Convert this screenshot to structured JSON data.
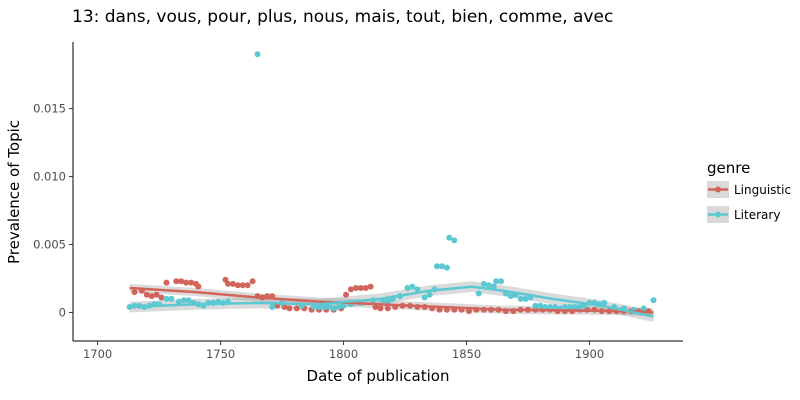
{
  "chart_data": {
    "type": "scatter",
    "title": "13: dans, vous, pour, plus, nous, mais, tout, bien, comme, avec",
    "xlabel": "Date of publication",
    "ylabel": "Prevalence of Topic",
    "xlim": [
      1690,
      1938
    ],
    "ylim": [
      -0.0021,
      0.0199
    ],
    "x_ticks": [
      1700,
      1750,
      1800,
      1850,
      1900
    ],
    "x_tick_labels": [
      "1700",
      "1750",
      "1800",
      "1850",
      "1900"
    ],
    "y_ticks": [
      0,
      0.005,
      0.01,
      0.015
    ],
    "y_tick_labels": [
      "0",
      "0.005",
      "0.010",
      "0.015"
    ],
    "grid": false,
    "legend": {
      "title": "genre",
      "position": "right"
    },
    "series": [
      {
        "name": "Linguistic",
        "color": "#d2655b",
        "points": [
          [
            1715,
            0.0015
          ],
          [
            1718,
            0.0016
          ],
          [
            1720,
            0.0013
          ],
          [
            1722,
            0.0012
          ],
          [
            1724,
            0.0013
          ],
          [
            1726,
            0.0011
          ],
          [
            1728,
            0.0022
          ],
          [
            1732,
            0.0023
          ],
          [
            1734,
            0.0023
          ],
          [
            1736,
            0.0022
          ],
          [
            1738,
            0.0022
          ],
          [
            1740,
            0.0021
          ],
          [
            1741,
            0.0019
          ],
          [
            1752,
            0.0024
          ],
          [
            1753,
            0.0021
          ],
          [
            1755,
            0.0021
          ],
          [
            1757,
            0.002
          ],
          [
            1759,
            0.002
          ],
          [
            1761,
            0.002
          ],
          [
            1763,
            0.0023
          ],
          [
            1765,
            0.0012
          ],
          [
            1767,
            0.0011
          ],
          [
            1769,
            0.0012
          ],
          [
            1771,
            0.0012
          ],
          [
            1773,
            0.0005
          ],
          [
            1776,
            0.0004
          ],
          [
            1778,
            0.0003
          ],
          [
            1781,
            0.0003
          ],
          [
            1784,
            0.0003
          ],
          [
            1787,
            0.0002
          ],
          [
            1790,
            0.0002
          ],
          [
            1793,
            0.0002
          ],
          [
            1796,
            0.0002
          ],
          [
            1799,
            0.0003
          ],
          [
            1801,
            0.0013
          ],
          [
            1803,
            0.0017
          ],
          [
            1805,
            0.0018
          ],
          [
            1807,
            0.0018
          ],
          [
            1809,
            0.0018
          ],
          [
            1811,
            0.0019
          ],
          [
            1813,
            0.0004
          ],
          [
            1815,
            0.0003
          ],
          [
            1818,
            0.0003
          ],
          [
            1821,
            0.0004
          ],
          [
            1824,
            0.0005
          ],
          [
            1827,
            0.0005
          ],
          [
            1830,
            0.0004
          ],
          [
            1833,
            0.0004
          ],
          [
            1836,
            0.0003
          ],
          [
            1839,
            0.0002
          ],
          [
            1842,
            0.0002
          ],
          [
            1845,
            0.0002
          ],
          [
            1848,
            0.0002
          ],
          [
            1851,
            0.0001
          ],
          [
            1854,
            0.0002
          ],
          [
            1857,
            0.0002
          ],
          [
            1860,
            0.0002
          ],
          [
            1863,
            0.0002
          ],
          [
            1866,
            0.0001
          ],
          [
            1869,
            0.0001
          ],
          [
            1872,
            0.0002
          ],
          [
            1875,
            0.0002
          ],
          [
            1878,
            0.0002
          ],
          [
            1881,
            0.0002
          ],
          [
            1884,
            0.0002
          ],
          [
            1887,
            0.0001
          ],
          [
            1890,
            0.0001
          ],
          [
            1893,
            0.0001
          ],
          [
            1896,
            0.0002
          ],
          [
            1899,
            0.0002
          ],
          [
            1902,
            0.0002
          ],
          [
            1905,
            0.0001
          ],
          [
            1908,
            0.0001
          ],
          [
            1911,
            0.0001
          ],
          [
            1914,
            0.0001
          ],
          [
            1917,
            0.0001
          ],
          [
            1920,
            0.0001
          ],
          [
            1924,
            0.0001
          ]
        ],
        "smooth": [
          [
            1713,
            0.0018
          ],
          [
            1740,
            0.0015
          ],
          [
            1765,
            0.0011
          ],
          [
            1790,
            0.0008
          ],
          [
            1815,
            0.0006
          ],
          [
            1840,
            0.0004
          ],
          [
            1865,
            0.0002
          ],
          [
            1890,
            0.00015
          ],
          [
            1915,
            0.0001
          ],
          [
            1926,
            0.0
          ]
        ],
        "band_halfwidth": 0.0003
      },
      {
        "name": "Literary",
        "color": "#5bc8d2",
        "points": [
          [
            1713,
            0.0004
          ],
          [
            1715,
            0.0005
          ],
          [
            1717,
            0.0005
          ],
          [
            1719,
            0.0004
          ],
          [
            1721,
            0.0005
          ],
          [
            1723,
            0.0006
          ],
          [
            1725,
            0.0006
          ],
          [
            1728,
            0.001
          ],
          [
            1730,
            0.001
          ],
          [
            1733,
            0.0008
          ],
          [
            1735,
            0.0009
          ],
          [
            1737,
            0.0009
          ],
          [
            1739,
            0.0007
          ],
          [
            1741,
            0.0006
          ],
          [
            1743,
            0.0005
          ],
          [
            1745,
            0.0007
          ],
          [
            1747,
            0.0007
          ],
          [
            1749,
            0.0008
          ],
          [
            1751,
            0.0007
          ],
          [
            1753,
            0.0008
          ],
          [
            1765,
            0.019
          ],
          [
            1771,
            0.0004
          ],
          [
            1775,
            0.0007
          ],
          [
            1783,
            0.0005
          ],
          [
            1788,
            0.0004
          ],
          [
            1790,
            0.0004
          ],
          [
            1792,
            0.0004
          ],
          [
            1794,
            0.0004
          ],
          [
            1796,
            0.0003
          ],
          [
            1798,
            0.0004
          ],
          [
            1800,
            0.0005
          ],
          [
            1803,
            0.0006
          ],
          [
            1807,
            0.0007
          ],
          [
            1812,
            0.0009
          ],
          [
            1816,
            0.0009
          ],
          [
            1818,
            0.0008
          ],
          [
            1820,
            0.001
          ],
          [
            1823,
            0.0012
          ],
          [
            1826,
            0.0018
          ],
          [
            1828,
            0.0019
          ],
          [
            1830,
            0.0017
          ],
          [
            1833,
            0.0011
          ],
          [
            1835,
            0.0013
          ],
          [
            1837,
            0.0017
          ],
          [
            1838,
            0.0034
          ],
          [
            1840,
            0.0034
          ],
          [
            1842,
            0.0033
          ],
          [
            1843,
            0.0055
          ],
          [
            1845,
            0.0053
          ],
          [
            1855,
            0.0014
          ],
          [
            1857,
            0.0021
          ],
          [
            1859,
            0.002
          ],
          [
            1861,
            0.0019
          ],
          [
            1862,
            0.0023
          ],
          [
            1864,
            0.0023
          ],
          [
            1866,
            0.0014
          ],
          [
            1868,
            0.0012
          ],
          [
            1870,
            0.0013
          ],
          [
            1872,
            0.001
          ],
          [
            1874,
            0.001
          ],
          [
            1876,
            0.0011
          ],
          [
            1878,
            0.0005
          ],
          [
            1880,
            0.0005
          ],
          [
            1882,
            0.0004
          ],
          [
            1884,
            0.0004
          ],
          [
            1886,
            0.0004
          ],
          [
            1888,
            0.0003
          ],
          [
            1890,
            0.0004
          ],
          [
            1892,
            0.0004
          ],
          [
            1894,
            0.0004
          ],
          [
            1896,
            0.0004
          ],
          [
            1898,
            0.0005
          ],
          [
            1900,
            0.0007
          ],
          [
            1902,
            0.0007
          ],
          [
            1904,
            0.0006
          ],
          [
            1906,
            0.0007
          ],
          [
            1910,
            0.0004
          ],
          [
            1914,
            0.0003
          ],
          [
            1918,
            0.0002
          ],
          [
            1922,
            0.0003
          ],
          [
            1926,
            0.0009
          ]
        ],
        "smooth": [
          [
            1713,
            0.0004
          ],
          [
            1740,
            0.0006
          ],
          [
            1765,
            0.0007
          ],
          [
            1790,
            0.0006
          ],
          [
            1815,
            0.001
          ],
          [
            1835,
            0.0016
          ],
          [
            1852,
            0.0019
          ],
          [
            1865,
            0.0016
          ],
          [
            1885,
            0.001
          ],
          [
            1905,
            0.0005
          ],
          [
            1926,
            -0.0003
          ]
        ],
        "band_halfwidth": 0.0004
      }
    ]
  }
}
